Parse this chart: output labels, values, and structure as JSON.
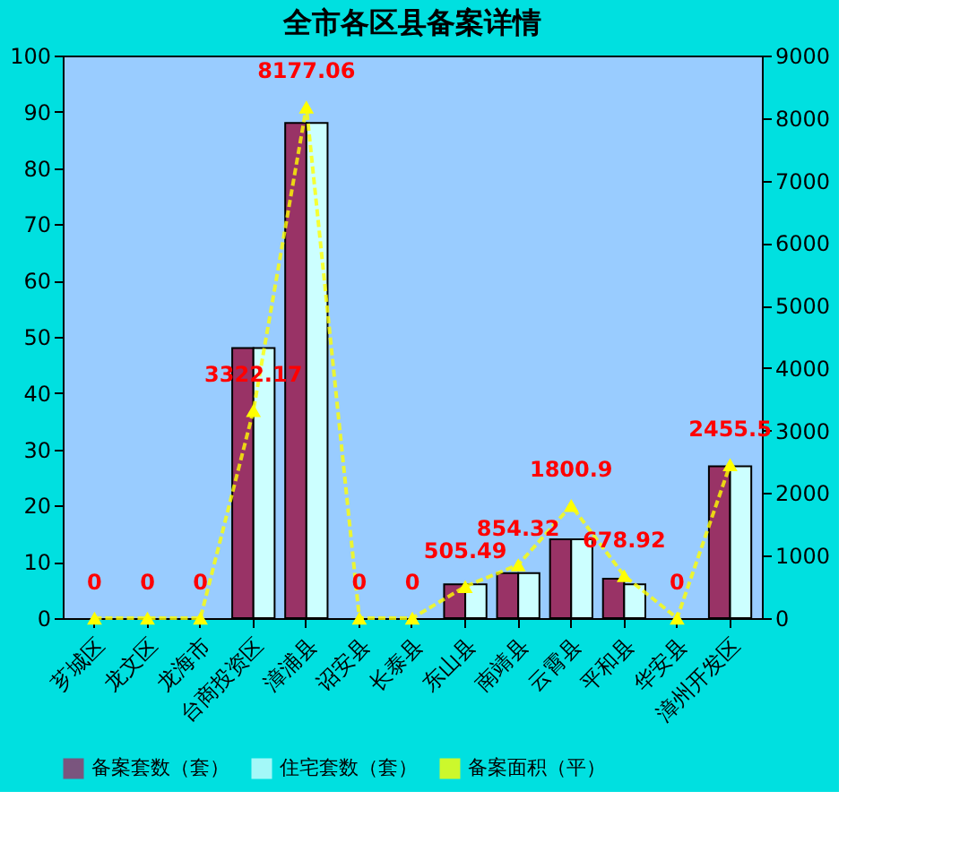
{
  "chart_data": {
    "type": "bar",
    "title": "全市各区县备案详情",
    "categories": [
      "芗城区",
      "龙文区",
      "龙海市",
      "台商投资区",
      "漳浦县",
      "诏安县",
      "长泰县",
      "东山县",
      "南靖县",
      "云霄县",
      "平和县",
      "华安县",
      "漳州开发区"
    ],
    "series": [
      {
        "name": "备案套数（套）",
        "color": "#993366",
        "values": [
          0,
          0,
          0,
          48,
          88,
          0,
          0,
          6,
          8,
          14,
          7,
          0,
          27
        ]
      },
      {
        "name": "住宅套数（套）",
        "color": "#ccffff",
        "values": [
          0,
          0,
          0,
          48,
          88,
          0,
          0,
          6,
          8,
          14,
          6,
          0,
          27
        ]
      },
      {
        "name": "备案面积（平）",
        "type": "line",
        "axis": "y2",
        "color": "#ffff00",
        "marker": "triangle",
        "line_style": "dashed",
        "values": [
          0,
          0,
          0,
          3322.17,
          8177.06,
          0,
          0,
          505.49,
          854.32,
          1800.9,
          678.92,
          0,
          2455.5
        ],
        "value_labels": [
          "0",
          "0",
          "0",
          "3322.17",
          "8177.06",
          "0",
          "0",
          "505.49",
          "854.32",
          "1800.9",
          "678.92",
          "0",
          "2455.5"
        ]
      }
    ],
    "ylim": [
      0,
      100
    ],
    "yticks": [
      0,
      10,
      20,
      30,
      40,
      50,
      60,
      70,
      80,
      90,
      100
    ],
    "y2lim": [
      0,
      9000
    ],
    "y2ticks": [
      0,
      1000,
      2000,
      3000,
      4000,
      5000,
      6000,
      7000,
      8000,
      9000
    ],
    "grid": false,
    "legend": "bottom"
  }
}
